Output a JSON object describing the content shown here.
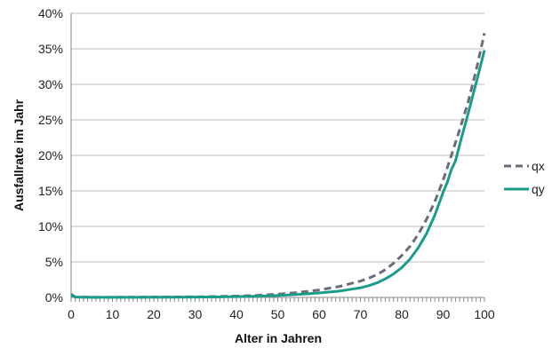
{
  "chart_data": {
    "type": "line",
    "xlabel": "Alter in Jahren",
    "ylabel": "Ausfallrate im Jahr",
    "xlim": [
      0,
      100
    ],
    "ylim": [
      0,
      40
    ],
    "x_ticks": [
      "0",
      "10",
      "20",
      "30",
      "40",
      "50",
      "60",
      "70",
      "80",
      "90",
      "100"
    ],
    "y_ticks": [
      "0%",
      "5%",
      "10%",
      "15%",
      "20%",
      "25%",
      "30%",
      "35%",
      "40%"
    ],
    "grid": "horizontal",
    "legend_position": "right",
    "series": [
      {
        "name": "qx",
        "color": "#6b6b7b",
        "style": "dashed",
        "points": [
          [
            0,
            0.45
          ],
          [
            1,
            0.05
          ],
          [
            5,
            0.02
          ],
          [
            10,
            0.02
          ],
          [
            15,
            0.03
          ],
          [
            20,
            0.05
          ],
          [
            25,
            0.06
          ],
          [
            30,
            0.08
          ],
          [
            35,
            0.12
          ],
          [
            40,
            0.18
          ],
          [
            45,
            0.28
          ],
          [
            50,
            0.45
          ],
          [
            55,
            0.7
          ],
          [
            60,
            1.05
          ],
          [
            65,
            1.55
          ],
          [
            70,
            2.3
          ],
          [
            72,
            2.7
          ],
          [
            74,
            3.2
          ],
          [
            76,
            3.9
          ],
          [
            78,
            4.8
          ],
          [
            80,
            5.9
          ],
          [
            82,
            7.2
          ],
          [
            84,
            8.9
          ],
          [
            86,
            11.0
          ],
          [
            88,
            13.5
          ],
          [
            90,
            16.5
          ],
          [
            92,
            20.0
          ],
          [
            94,
            23.6
          ],
          [
            96,
            27.4
          ],
          [
            98,
            32.0
          ],
          [
            100,
            37.2
          ]
        ]
      },
      {
        "name": "qy",
        "color": "#1a9c8a",
        "style": "solid",
        "points": [
          [
            0,
            0.35
          ],
          [
            1,
            0.04
          ],
          [
            5,
            0.01
          ],
          [
            10,
            0.01
          ],
          [
            15,
            0.02
          ],
          [
            20,
            0.03
          ],
          [
            25,
            0.03
          ],
          [
            30,
            0.05
          ],
          [
            35,
            0.07
          ],
          [
            40,
            0.11
          ],
          [
            45,
            0.17
          ],
          [
            50,
            0.27
          ],
          [
            55,
            0.42
          ],
          [
            60,
            0.62
          ],
          [
            65,
            0.9
          ],
          [
            70,
            1.35
          ],
          [
            72,
            1.65
          ],
          [
            74,
            2.05
          ],
          [
            76,
            2.6
          ],
          [
            78,
            3.3
          ],
          [
            80,
            4.2
          ],
          [
            82,
            5.4
          ],
          [
            84,
            7.0
          ],
          [
            86,
            9.0
          ],
          [
            88,
            11.6
          ],
          [
            90,
            14.8
          ],
          [
            91,
            16.2
          ],
          [
            92,
            18.0
          ],
          [
            93,
            19.2
          ],
          [
            94,
            21.5
          ],
          [
            96,
            25.8
          ],
          [
            98,
            30.2
          ],
          [
            100,
            34.8
          ]
        ]
      }
    ]
  }
}
